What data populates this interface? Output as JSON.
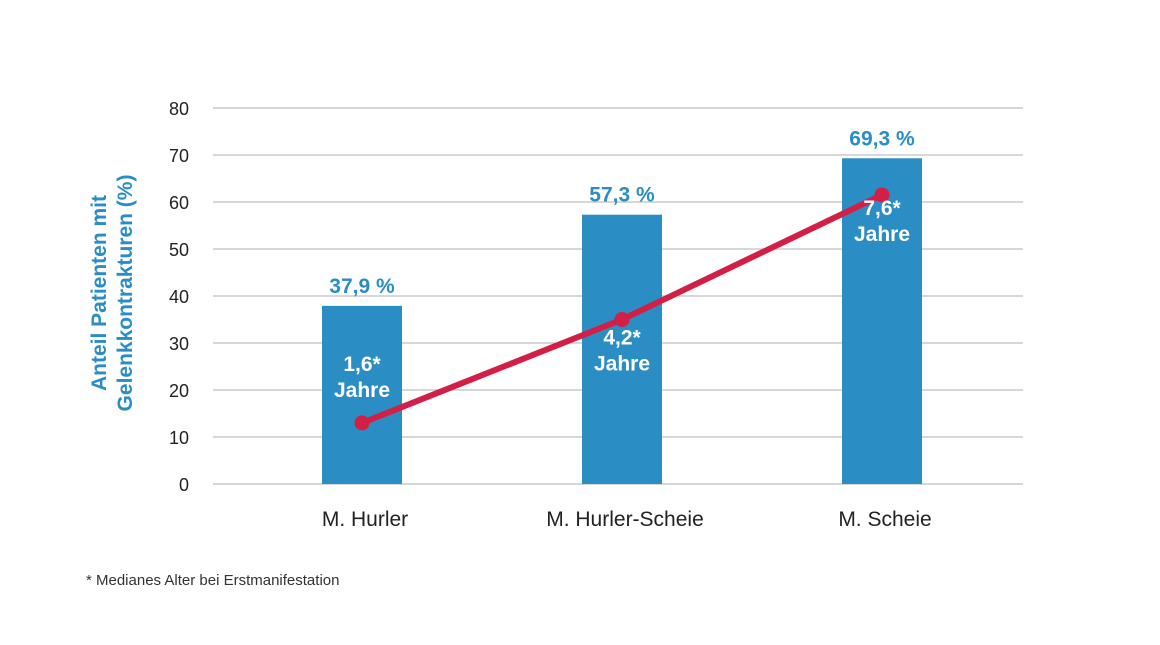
{
  "chart_data": {
    "type": "bar",
    "categories": [
      "M. Hurler",
      "M. Hurler-Scheie",
      "M. Scheie"
    ],
    "series": [
      {
        "type": "bar",
        "values": [
          37.9,
          57.3,
          69.3
        ],
        "labels": [
          "37,9 %",
          "57,3 %",
          "69,3 %"
        ]
      },
      {
        "type": "line",
        "values": [
          13,
          35,
          61.5
        ],
        "labels": [
          [
            "1,6*",
            "Jahre"
          ],
          [
            "4,2*",
            "Jahre"
          ],
          [
            "7,6*",
            "Jahre"
          ]
        ]
      }
    ],
    "ylabel": [
      "Anteil Patienten mit",
      "Gelenkkontrakturen (%)"
    ],
    "yticks": [
      "0",
      "10",
      "20",
      "30",
      "40",
      "50",
      "60",
      "70",
      "80"
    ],
    "ylim": [
      0,
      80
    ],
    "grid": true,
    "colors": {
      "bar": "#2a8dc4",
      "line": "#d31f45",
      "bar_label": "#2a8dc4",
      "axis_label": "#2a8dc4",
      "inner_label": "#ffffff",
      "grid": "#bfbfbf",
      "text": "#222222"
    }
  },
  "footnote": "* Medianes Alter bei Erstmanifestation"
}
